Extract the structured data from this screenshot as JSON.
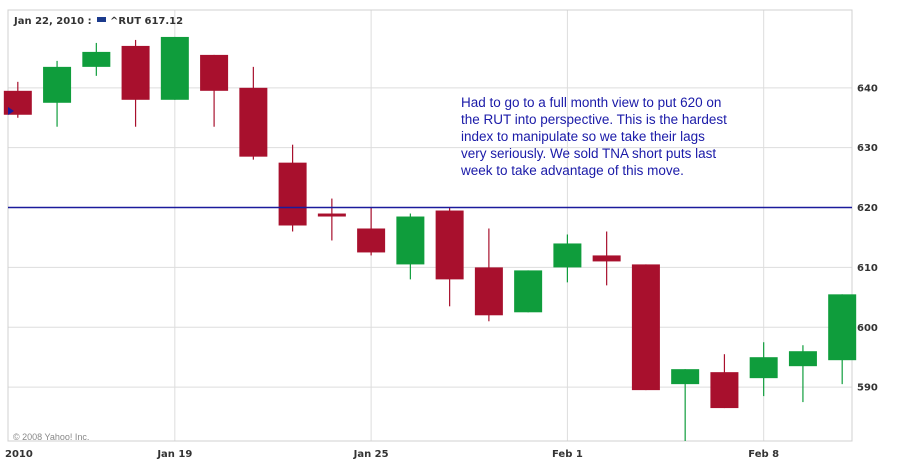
{
  "header": {
    "date": "Jan 22, 2010 :",
    "series": "^RUT 617.12"
  },
  "copyright": "© 2008 Yahoo! Inc.",
  "annotation": {
    "lines": [
      "Had to go to a full month view to put 620 on",
      "the RUT into perspective.   This is the hardest",
      "index to manipulate so we take their lags",
      "very seriously.  We sold TNA short puts last",
      "week to take advantage of this move."
    ]
  },
  "colors": {
    "up": "#0f9d3c",
    "down": "#a8102d",
    "reference": "#1b1b9c",
    "grid": "#dddddd",
    "text": "#333333",
    "annotation": "#1a1aa8",
    "series_marker": "#1b3a8c"
  },
  "chart_data": {
    "type": "candlestick",
    "title": "",
    "xlabel": "",
    "ylabel": "",
    "ylim": [
      581,
      653
    ],
    "yticks": [
      590,
      600,
      610,
      620,
      630,
      640
    ],
    "x_labels": [
      {
        "label": "2010",
        "at": "Jan 15"
      },
      {
        "label": "Jan 19",
        "at": "Jan 19"
      },
      {
        "label": "Jan 25",
        "at": "Jan 25"
      },
      {
        "label": "Feb 1",
        "at": "Feb 1"
      },
      {
        "label": "Feb 8",
        "at": "Feb 8"
      }
    ],
    "reference_line": 620,
    "series": [
      {
        "date": "Jan 15",
        "open": 639.5,
        "high": 641,
        "low": 635,
        "close": 635.5
      },
      {
        "date": "Jan 15b",
        "open": 637.5,
        "high": 644.5,
        "low": 633.5,
        "close": 643.5
      },
      {
        "date": "Jan 18",
        "open": 643.5,
        "high": 647.5,
        "low": 642,
        "close": 646
      },
      {
        "date": "Jan 18b",
        "open": 647,
        "high": 648,
        "low": 633.5,
        "close": 638
      },
      {
        "date": "Jan 19",
        "open": 638,
        "high": 648.5,
        "low": 638,
        "close": 648.5
      },
      {
        "date": "Jan 20",
        "open": 645.5,
        "high": 645.5,
        "low": 633.5,
        "close": 639.5
      },
      {
        "date": "Jan 21",
        "open": 640,
        "high": 643.5,
        "low": 628,
        "close": 628.5
      },
      {
        "date": "Jan 22",
        "open": 627.5,
        "high": 630.5,
        "low": 616,
        "close": 617
      },
      {
        "date": "Jan 22b",
        "open": 619,
        "high": 621.5,
        "low": 614.5,
        "close": 618.5
      },
      {
        "date": "Jan 25",
        "open": 616.5,
        "high": 620,
        "low": 612,
        "close": 612.5
      },
      {
        "date": "Jan 26",
        "open": 610.5,
        "high": 619,
        "low": 608,
        "close": 618.5
      },
      {
        "date": "Jan 27",
        "open": 619.5,
        "high": 620,
        "low": 603.5,
        "close": 608
      },
      {
        "date": "Jan 28",
        "open": 610,
        "high": 616.5,
        "low": 601,
        "close": 602
      },
      {
        "date": "Jan 29",
        "open": 602.5,
        "high": 609.5,
        "low": 602.5,
        "close": 609.5
      },
      {
        "date": "Feb 1",
        "open": 610,
        "high": 615.5,
        "low": 607.5,
        "close": 614
      },
      {
        "date": "Feb 2",
        "open": 612,
        "high": 616,
        "low": 607,
        "close": 611
      },
      {
        "date": "Feb 3",
        "open": 610.5,
        "high": 610.5,
        "low": 589.5,
        "close": 589.5
      },
      {
        "date": "Feb 4",
        "open": 590.5,
        "high": 593,
        "low": 581,
        "close": 593
      },
      {
        "date": "Feb 5",
        "open": 592.5,
        "high": 595.5,
        "low": 586.5,
        "close": 586.5
      },
      {
        "date": "Feb 8",
        "open": 591.5,
        "high": 597.5,
        "low": 588.5,
        "close": 595
      },
      {
        "date": "Feb 9",
        "open": 593.5,
        "high": 597,
        "low": 587.5,
        "close": 596
      },
      {
        "date": "Feb 10",
        "open": 594.5,
        "high": 605.5,
        "low": 590.5,
        "close": 605.5
      }
    ]
  }
}
